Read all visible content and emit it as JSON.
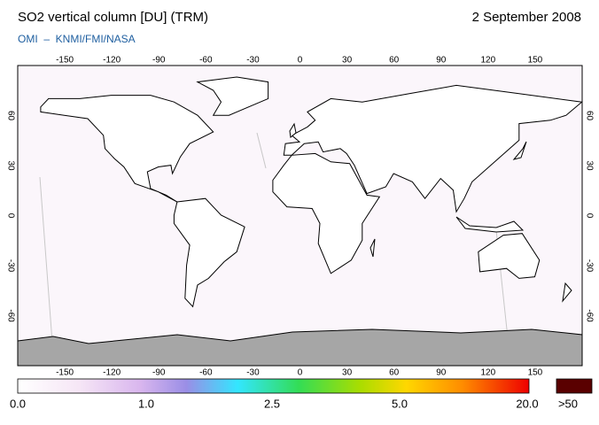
{
  "header": {
    "title": "SO2 vertical column [DU] (TRM)",
    "date": "2 September 2008",
    "source": "OMI  –  KNMI/FMI/NASA"
  },
  "map": {
    "lon_ticks": [
      -150,
      -120,
      -90,
      -60,
      -30,
      0,
      30,
      60,
      90,
      120,
      150
    ],
    "lat_ticks": [
      60,
      30,
      0,
      -30,
      -60
    ]
  },
  "colorbar": {
    "labels": [
      "0.0",
      "1.0",
      "2.5",
      "5.0",
      "20.0"
    ],
    "overflow": ">50"
  }
}
